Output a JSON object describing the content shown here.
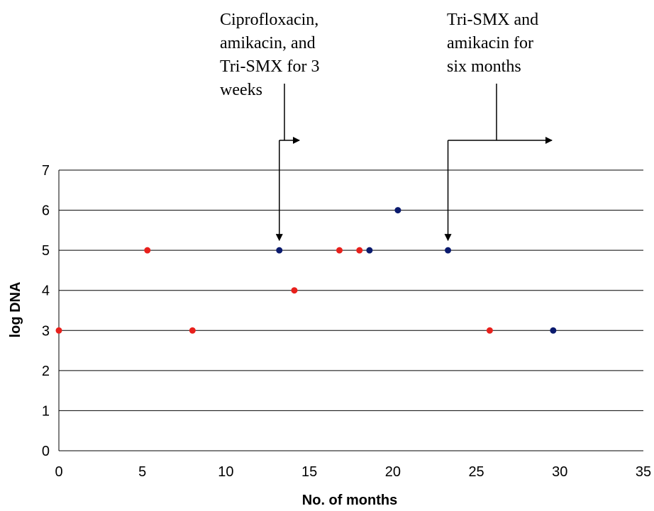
{
  "chart_data": {
    "type": "scatter",
    "title": "",
    "xlabel": "No. of months",
    "ylabel": "log DNA",
    "xlim": [
      0,
      35
    ],
    "ylim": [
      0,
      7
    ],
    "xticks": [
      0,
      5,
      10,
      15,
      20,
      25,
      30,
      35
    ],
    "yticks": [
      0,
      1,
      2,
      3,
      4,
      5,
      6,
      7
    ],
    "grid": "horizontal",
    "series": [
      {
        "color": "#e8201c",
        "points": [
          {
            "x": 0,
            "y": 3
          },
          {
            "x": 5.3,
            "y": 5
          },
          {
            "x": 8.0,
            "y": 3
          },
          {
            "x": 14.1,
            "y": 4
          },
          {
            "x": 16.8,
            "y": 5
          },
          {
            "x": 18.0,
            "y": 5
          },
          {
            "x": 25.8,
            "y": 3
          }
        ]
      },
      {
        "color": "#0a1a6e",
        "points": [
          {
            "x": 13.2,
            "y": 5
          },
          {
            "x": 18.6,
            "y": 5
          },
          {
            "x": 20.3,
            "y": 6
          },
          {
            "x": 23.3,
            "y": 5
          },
          {
            "x": 29.6,
            "y": 3
          }
        ]
      }
    ],
    "annotations": [
      {
        "lines": [
          "Ciprofloxacin,",
          "amikacin, and",
          "Tri-SMX for 3",
          "weeks"
        ],
        "x": 13.2
      },
      {
        "lines": [
          "Tri-SMX and",
          "amikacin for",
          "six months"
        ],
        "x": 23.3
      }
    ]
  }
}
